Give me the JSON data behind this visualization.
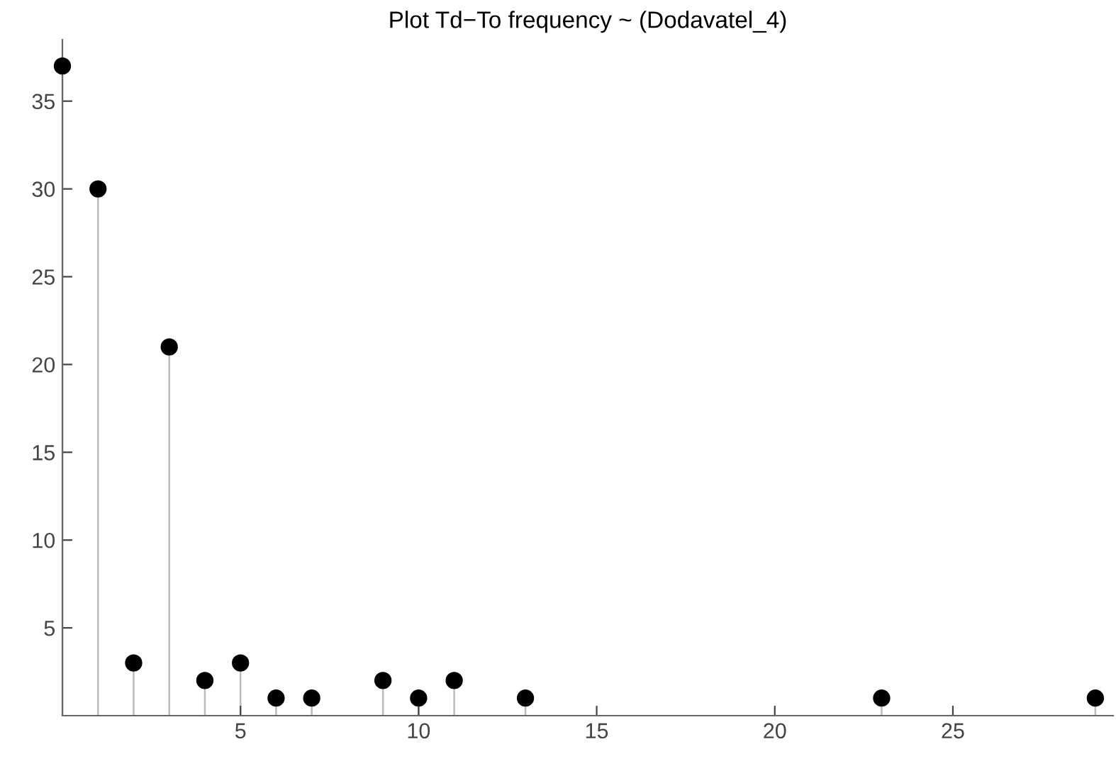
{
  "chart_data": {
    "type": "lollipop",
    "title": "Plot Td−To frequency ~ (Dodavatel_4)",
    "x": [
      0,
      1,
      2,
      3,
      4,
      5,
      6,
      7,
      9,
      10,
      11,
      13,
      23,
      29
    ],
    "values": [
      37,
      30,
      3,
      21,
      2,
      3,
      1,
      1,
      2,
      1,
      2,
      1,
      1,
      1
    ],
    "color": "#000000",
    "marker": "circle",
    "xlim": [
      0,
      29.5
    ],
    "xticks": [
      5,
      10,
      15,
      20,
      25
    ],
    "ylim": [
      0,
      38.5
    ],
    "yticks": [
      5,
      10,
      15,
      20,
      25,
      30,
      35
    ],
    "grid": false
  }
}
